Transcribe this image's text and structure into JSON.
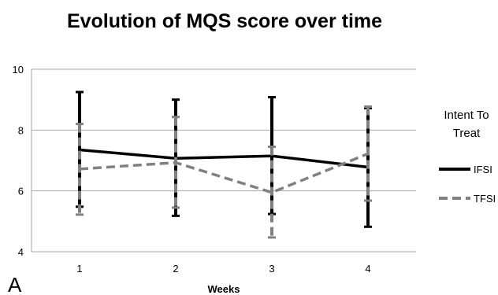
{
  "panel_label": "A",
  "chart_data": {
    "type": "line",
    "title": "Evolution of MQS score over time",
    "xlabel": "Weeks",
    "ylabel": "",
    "categories": [
      "1",
      "2",
      "3",
      "4"
    ],
    "ylim": [
      4,
      10
    ],
    "yticks": [
      "4",
      "6",
      "8",
      "10"
    ],
    "grid": true,
    "legend": {
      "title_lines": [
        "Intent To",
        "Treat"
      ],
      "placement": "right"
    },
    "series": [
      {
        "name": "IFSI",
        "color": "#000000",
        "dash": "solid",
        "values": [
          7.35,
          7.07,
          7.15,
          6.78
        ],
        "error_low": [
          5.48,
          5.18,
          5.24,
          4.82
        ],
        "error_high": [
          9.25,
          9.0,
          9.08,
          8.72
        ]
      },
      {
        "name": "TFSI",
        "color": "#808080",
        "dash": "dashed",
        "values": [
          6.72,
          6.93,
          5.95,
          7.22
        ],
        "error_low": [
          5.22,
          5.45,
          4.47,
          5.68
        ],
        "error_high": [
          8.2,
          8.43,
          7.45,
          8.77
        ]
      }
    ]
  }
}
